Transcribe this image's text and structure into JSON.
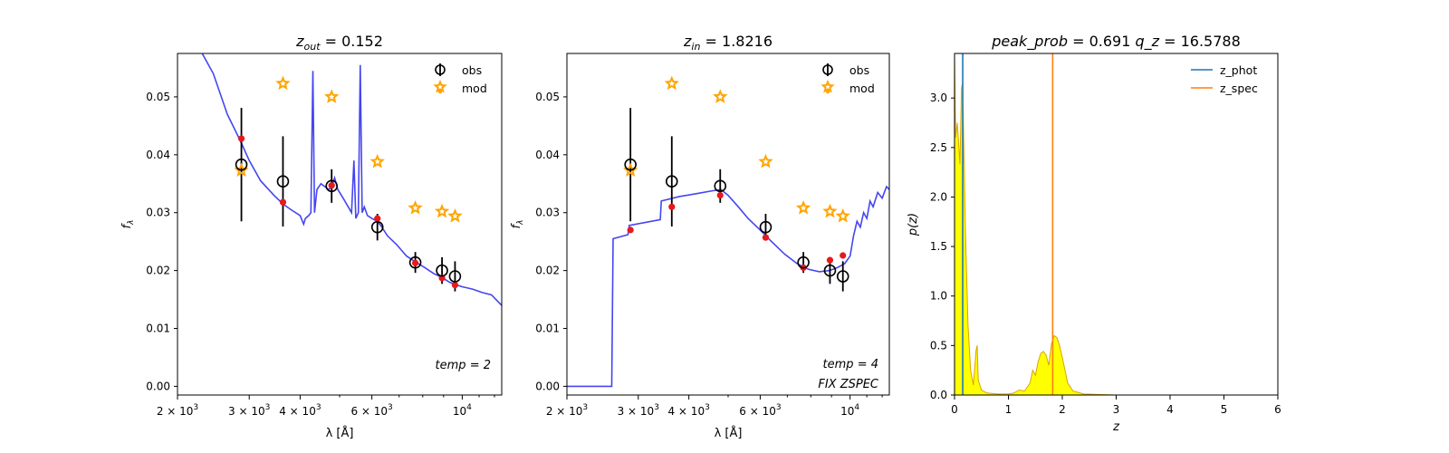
{
  "chart_data": [
    {
      "type": "scatter",
      "title": {
        "var": "z",
        "sub": "out",
        "value": "0.152"
      },
      "xlabel": "λ [Å]",
      "ylabel": "f",
      "ylabel_sub": "λ",
      "xscale": "log",
      "xlim": [
        2000,
        12500
      ],
      "ylim": [
        -0.0015,
        0.0575
      ],
      "xticks": [
        {
          "value": 2000,
          "mant": "2 × 10",
          "exp": "3"
        },
        {
          "value": 3000,
          "mant": "3 × 10",
          "exp": "3"
        },
        {
          "value": 4000,
          "mant": "4 × 10",
          "exp": "3"
        },
        {
          "value": 6000,
          "mant": "6 × 10",
          "exp": "3"
        },
        {
          "value": 10000,
          "mant": "10",
          "exp": "4"
        }
      ],
      "yticks": [
        "0.00",
        "0.01",
        "0.02",
        "0.03",
        "0.04",
        "0.05"
      ],
      "legend": {
        "position": "top-right",
        "entries": [
          "obs",
          "mod"
        ]
      },
      "annotations": [
        "temp = 2"
      ],
      "colors": {
        "model_line": "#3b3bf0",
        "mod_star": "#ffa500",
        "fit_dot": "#e8191b",
        "obs": "#000000"
      },
      "observations": [
        {
          "x": 2870,
          "y": 0.0383,
          "err": 0.0098
        },
        {
          "x": 3630,
          "y": 0.0354,
          "err": 0.0078
        },
        {
          "x": 4780,
          "y": 0.0346,
          "err": 0.0029
        },
        {
          "x": 6190,
          "y": 0.0275,
          "err": 0.0023
        },
        {
          "x": 7670,
          "y": 0.0214,
          "err": 0.0018
        },
        {
          "x": 8920,
          "y": 0.02,
          "err": 0.0023
        },
        {
          "x": 9600,
          "y": 0.019,
          "err": 0.0026
        }
      ],
      "model_photometry": [
        {
          "x": 2870,
          "y": 0.0373
        },
        {
          "x": 3630,
          "y": 0.0523
        },
        {
          "x": 4780,
          "y": 0.05
        },
        {
          "x": 6190,
          "y": 0.0388
        },
        {
          "x": 7670,
          "y": 0.0308
        },
        {
          "x": 8920,
          "y": 0.0302
        },
        {
          "x": 9600,
          "y": 0.0294
        }
      ],
      "fit_points": [
        {
          "x": 2870,
          "y": 0.0428
        },
        {
          "x": 3630,
          "y": 0.0318
        },
        {
          "x": 4780,
          "y": 0.0347
        },
        {
          "x": 6190,
          "y": 0.029
        },
        {
          "x": 7670,
          "y": 0.0213
        },
        {
          "x": 8920,
          "y": 0.0187
        },
        {
          "x": 9600,
          "y": 0.0175
        }
      ],
      "model_curve": [
        [
          2300,
          0.0575
        ],
        [
          2450,
          0.054
        ],
        [
          2650,
          0.047
        ],
        [
          2870,
          0.042
        ],
        [
          3000,
          0.039
        ],
        [
          3200,
          0.0355
        ],
        [
          3450,
          0.033
        ],
        [
          3630,
          0.0315
        ],
        [
          3800,
          0.0305
        ],
        [
          4000,
          0.0295
        ],
        [
          4080,
          0.028
        ],
        [
          4120,
          0.029
        ],
        [
          4200,
          0.0295
        ],
        [
          4250,
          0.03
        ],
        [
          4300,
          0.0545
        ],
        [
          4340,
          0.03
        ],
        [
          4400,
          0.034
        ],
        [
          4500,
          0.035
        ],
        [
          4600,
          0.0345
        ],
        [
          4700,
          0.034
        ],
        [
          4780,
          0.0345
        ],
        [
          4860,
          0.036
        ],
        [
          4950,
          0.034
        ],
        [
          5100,
          0.0325
        ],
        [
          5250,
          0.031
        ],
        [
          5350,
          0.03
        ],
        [
          5420,
          0.039
        ],
        [
          5480,
          0.029
        ],
        [
          5560,
          0.03
        ],
        [
          5620,
          0.0555
        ],
        [
          5680,
          0.03
        ],
        [
          5750,
          0.031
        ],
        [
          5850,
          0.0295
        ],
        [
          6000,
          0.029
        ],
        [
          6190,
          0.0285
        ],
        [
          6350,
          0.0275
        ],
        [
          6550,
          0.026
        ],
        [
          6900,
          0.0245
        ],
        [
          7300,
          0.0225
        ],
        [
          7670,
          0.0215
        ],
        [
          8100,
          0.0205
        ],
        [
          8500,
          0.0195
        ],
        [
          8920,
          0.0188
        ],
        [
          9300,
          0.018
        ],
        [
          9600,
          0.0176
        ],
        [
          10000,
          0.0172
        ],
        [
          10600,
          0.0168
        ],
        [
          11200,
          0.0162
        ],
        [
          11800,
          0.0158
        ],
        [
          12300,
          0.0145
        ],
        [
          12500,
          0.014
        ]
      ]
    },
    {
      "type": "scatter",
      "title": {
        "var": "z",
        "sub": "in",
        "value": "1.8216"
      },
      "xlabel": "λ [Å]",
      "ylabel": "f",
      "ylabel_sub": "λ",
      "xscale": "log",
      "xlim": [
        2000,
        12500
      ],
      "ylim": [
        -0.0015,
        0.0575
      ],
      "xticks": [
        {
          "value": 2000,
          "mant": "2 × 10",
          "exp": "3"
        },
        {
          "value": 3000,
          "mant": "3 × 10",
          "exp": "3"
        },
        {
          "value": 4000,
          "mant": "4 × 10",
          "exp": "3"
        },
        {
          "value": 6000,
          "mant": "6 × 10",
          "exp": "3"
        },
        {
          "value": 10000,
          "mant": "10",
          "exp": "4"
        }
      ],
      "yticks": [
        "0.00",
        "0.01",
        "0.02",
        "0.03",
        "0.04",
        "0.05"
      ],
      "legend": {
        "position": "top-right",
        "entries": [
          "obs",
          "mod"
        ]
      },
      "annotations": [
        "temp = 4",
        "FIX ZSPEC"
      ],
      "colors": {
        "model_line": "#3b3bf0",
        "mod_star": "#ffa500",
        "fit_dot": "#e8191b",
        "obs": "#000000"
      },
      "observations": [
        {
          "x": 2870,
          "y": 0.0383,
          "err": 0.0098
        },
        {
          "x": 3630,
          "y": 0.0354,
          "err": 0.0078
        },
        {
          "x": 4780,
          "y": 0.0346,
          "err": 0.0029
        },
        {
          "x": 6190,
          "y": 0.0275,
          "err": 0.0023
        },
        {
          "x": 7670,
          "y": 0.0214,
          "err": 0.0018
        },
        {
          "x": 8920,
          "y": 0.02,
          "err": 0.0023
        },
        {
          "x": 9600,
          "y": 0.019,
          "err": 0.0026
        }
      ],
      "model_photometry": [
        {
          "x": 2870,
          "y": 0.0373
        },
        {
          "x": 3630,
          "y": 0.0523
        },
        {
          "x": 4780,
          "y": 0.05
        },
        {
          "x": 6190,
          "y": 0.0388
        },
        {
          "x": 7670,
          "y": 0.0308
        },
        {
          "x": 8920,
          "y": 0.0302
        },
        {
          "x": 9600,
          "y": 0.0294
        }
      ],
      "fit_points": [
        {
          "x": 2870,
          "y": 0.027
        },
        {
          "x": 3630,
          "y": 0.031
        },
        {
          "x": 4780,
          "y": 0.033
        },
        {
          "x": 6190,
          "y": 0.0257
        },
        {
          "x": 7670,
          "y": 0.0205
        },
        {
          "x": 8920,
          "y": 0.0218
        },
        {
          "x": 9600,
          "y": 0.0226
        }
      ],
      "model_curve": [
        [
          2000,
          0.0
        ],
        [
          2580,
          0.0
        ],
        [
          2600,
          0.0255
        ],
        [
          2830,
          0.0262
        ],
        [
          2850,
          0.0278
        ],
        [
          3400,
          0.0288
        ],
        [
          3420,
          0.032
        ],
        [
          3800,
          0.0328
        ],
        [
          4200,
          0.0333
        ],
        [
          4600,
          0.0338
        ],
        [
          4800,
          0.034
        ],
        [
          5000,
          0.033
        ],
        [
          5300,
          0.031
        ],
        [
          5600,
          0.029
        ],
        [
          6000,
          0.027
        ],
        [
          6400,
          0.025
        ],
        [
          6900,
          0.0228
        ],
        [
          7400,
          0.0212
        ],
        [
          7900,
          0.0202
        ],
        [
          8400,
          0.0198
        ],
        [
          8900,
          0.02
        ],
        [
          9300,
          0.0205
        ],
        [
          9700,
          0.0212
        ],
        [
          10000,
          0.0225
        ],
        [
          10200,
          0.026
        ],
        [
          10400,
          0.0285
        ],
        [
          10600,
          0.0275
        ],
        [
          10800,
          0.03
        ],
        [
          11000,
          0.029
        ],
        [
          11200,
          0.032
        ],
        [
          11400,
          0.031
        ],
        [
          11700,
          0.0335
        ],
        [
          12000,
          0.0325
        ],
        [
          12300,
          0.0345
        ],
        [
          12500,
          0.034
        ]
      ]
    },
    {
      "type": "area",
      "title": {
        "part1": "peak_prob",
        "value1": "0.691",
        "part2": "q_z",
        "value2": "16.5788"
      },
      "xlabel": "z",
      "ylabel": "p(z)",
      "xlim": [
        0,
        6
      ],
      "ylim": [
        0,
        3.45
      ],
      "xticks": [
        "0",
        "1",
        "2",
        "3",
        "4",
        "5",
        "6"
      ],
      "yticks": [
        "0.0",
        "0.5",
        "1.0",
        "1.5",
        "2.0",
        "2.5",
        "3.0"
      ],
      "legend": {
        "position": "top-right",
        "entries": [
          "z_phot",
          "z_spec"
        ]
      },
      "colors": {
        "z_phot": "#1f77b4",
        "z_spec": "#ff7f0e",
        "fill": "#ffff00",
        "edge": "#d9a400"
      },
      "z_phot": 0.152,
      "z_spec": 1.8216,
      "pz_curve": [
        [
          0,
          3.45
        ],
        [
          0.02,
          2.6
        ],
        [
          0.05,
          2.75
        ],
        [
          0.08,
          2.5
        ],
        [
          0.1,
          2.33
        ],
        [
          0.13,
          3.1
        ],
        [
          0.15,
          3.15
        ],
        [
          0.18,
          2.3
        ],
        [
          0.2,
          1.7
        ],
        [
          0.25,
          0.7
        ],
        [
          0.3,
          0.25
        ],
        [
          0.35,
          0.1
        ],
        [
          0.4,
          0.45
        ],
        [
          0.42,
          0.5
        ],
        [
          0.44,
          0.15
        ],
        [
          0.5,
          0.05
        ],
        [
          0.6,
          0.02
        ],
        [
          0.8,
          0.01
        ],
        [
          1.0,
          0.01
        ],
        [
          1.1,
          0.02
        ],
        [
          1.2,
          0.05
        ],
        [
          1.3,
          0.04
        ],
        [
          1.4,
          0.12
        ],
        [
          1.45,
          0.25
        ],
        [
          1.5,
          0.2
        ],
        [
          1.55,
          0.33
        ],
        [
          1.6,
          0.42
        ],
        [
          1.65,
          0.44
        ],
        [
          1.7,
          0.4
        ],
        [
          1.75,
          0.3
        ],
        [
          1.8,
          0.52
        ],
        [
          1.85,
          0.6
        ],
        [
          1.9,
          0.58
        ],
        [
          1.95,
          0.5
        ],
        [
          2.0,
          0.38
        ],
        [
          2.05,
          0.25
        ],
        [
          2.1,
          0.12
        ],
        [
          2.2,
          0.04
        ],
        [
          2.4,
          0.01
        ],
        [
          3.0,
          0.0
        ],
        [
          5.0,
          0.0
        ]
      ]
    }
  ]
}
